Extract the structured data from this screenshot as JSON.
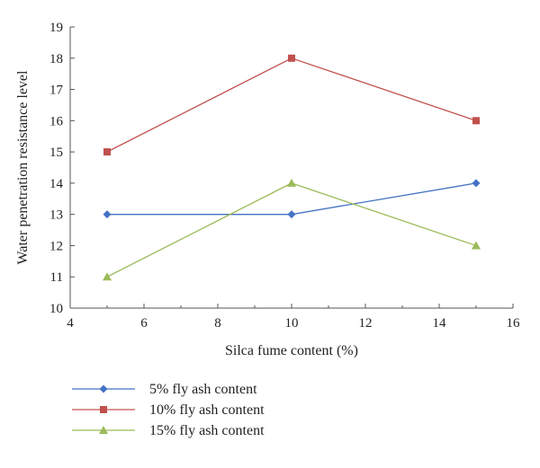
{
  "chart_data": {
    "type": "line",
    "title": "",
    "xlabel": "Silca fume content (%)",
    "ylabel": "Water penetration resistance level",
    "xlim": [
      4,
      16
    ],
    "ylim": [
      10,
      19
    ],
    "xticks": [
      4,
      6,
      8,
      10,
      12,
      14,
      16
    ],
    "yticks": [
      10,
      11,
      12,
      13,
      14,
      15,
      16,
      17,
      18,
      19
    ],
    "grid": false,
    "legend_position": "bottom",
    "x": [
      5,
      10,
      15
    ],
    "series": [
      {
        "name": "5% fly ash content",
        "values": [
          13,
          13,
          14
        ],
        "color": "#4472C4",
        "marker": "diamond"
      },
      {
        "name": "10% fly ash content",
        "values": [
          15,
          18,
          16
        ],
        "color": "#C0504D",
        "marker": "square"
      },
      {
        "name": "15% fly ash content",
        "values": [
          11,
          14,
          12
        ],
        "color": "#9BBB59",
        "marker": "triangle"
      }
    ]
  }
}
